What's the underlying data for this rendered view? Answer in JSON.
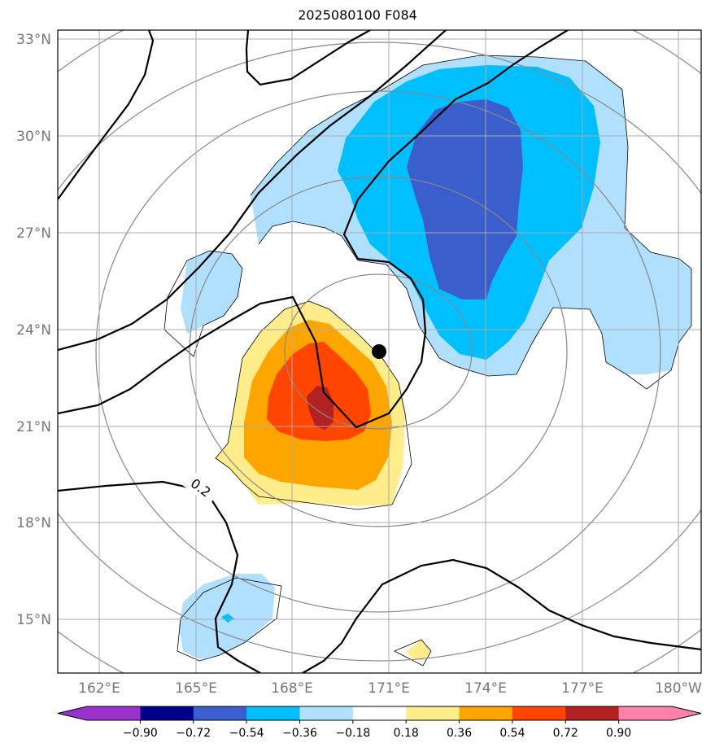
{
  "title": "2025080100 F084",
  "lat_labels": [
    "33°N",
    "30°N",
    "27°N",
    "24°N",
    "21°N",
    "18°N",
    "15°N"
  ],
  "lon_labels": [
    "162°E",
    "165°E",
    "168°E",
    "171°E",
    "174°E",
    "177°E",
    "180°W"
  ],
  "colorbar": {
    "labels": [
      "−0.90",
      "−0.72",
      "−0.54",
      "−0.36",
      "−0.18",
      "0.18",
      "0.36",
      "0.54",
      "0.72",
      "0.90"
    ],
    "colors": {
      "under": "#9932cc",
      "bins": [
        "#00008b",
        "#3a5fcd",
        "#00bfff",
        "#b0e0fe",
        "#ffffff",
        "#ffec8b",
        "#ffa500",
        "#ff4500",
        "#b22222"
      ],
      "over": "#ff82ab"
    }
  },
  "contour_label": "0.2",
  "center_marker": "storm-center-dot"
}
